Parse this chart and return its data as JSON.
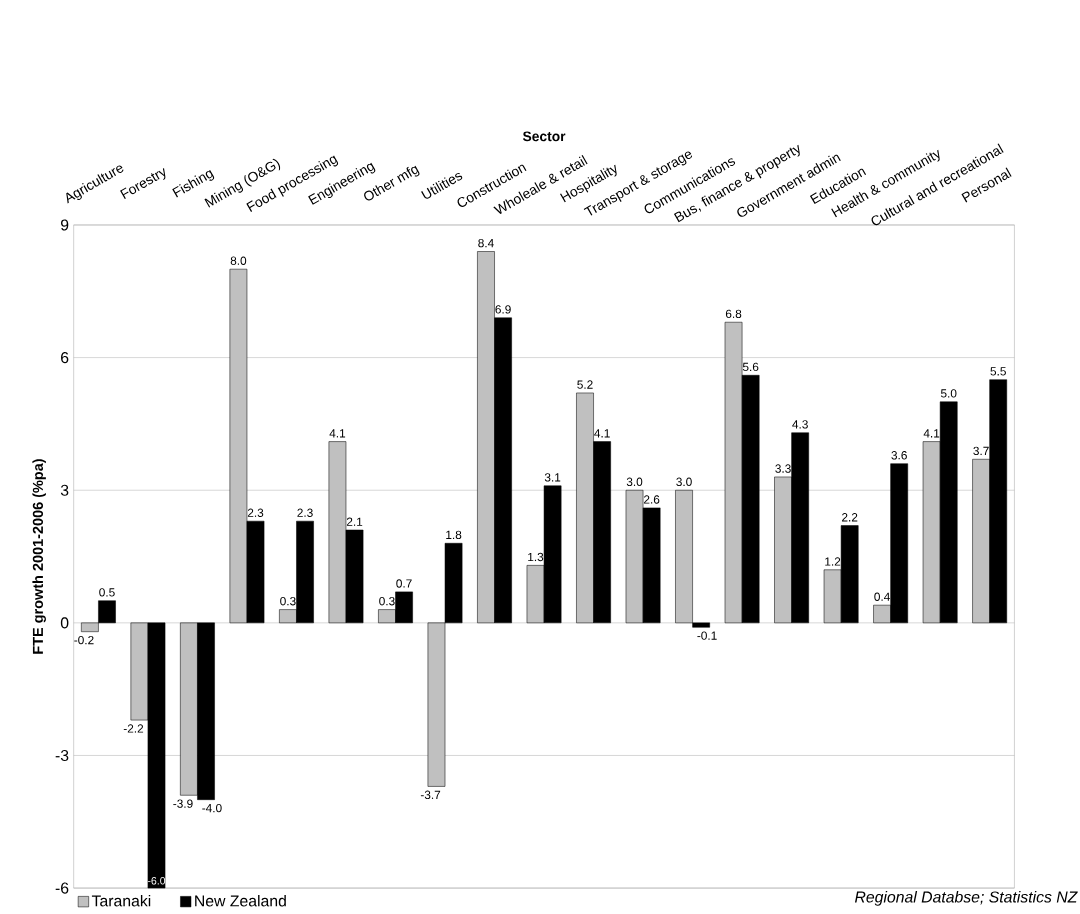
{
  "chart_data": {
    "type": "bar",
    "xlabel": "Sector",
    "ylabel": "FTE growth 2001-2006 (%pa)",
    "categories": [
      "Agriculture",
      "Forestry",
      "Fishing",
      "Mining (O&G)",
      "Food processing",
      "Engineering",
      "Other mfg",
      "Utilities",
      "Construction",
      "Wholeale & retail",
      "Hospitality",
      "Transport & storage",
      "Communications",
      "Bus, finance & property",
      "Government admin",
      "Education",
      "Health & community",
      "Cultural and recreational",
      "Personal"
    ],
    "series": [
      {
        "name": "Taranaki",
        "color": "#c0c0c0",
        "values": [
          -0.2,
          -2.2,
          -3.9,
          8.0,
          0.3,
          4.1,
          0.3,
          -3.7,
          8.4,
          1.3,
          5.2,
          3.0,
          3.0,
          6.8,
          3.3,
          1.2,
          0.4,
          4.1,
          3.7
        ],
        "value_labels": [
          "-0.2",
          "-2.2",
          "-3.9",
          "8.0",
          "0.3",
          "4.1",
          "0.3",
          "-3.7",
          "8.4",
          "1.3",
          "5.2",
          "3.0",
          "3.0",
          "6.8",
          "3.3",
          "1.2",
          "0.4",
          "4.1",
          "3.7"
        ]
      },
      {
        "name": "New Zealand",
        "color": "#000000",
        "values": [
          0.5,
          -6.0,
          -4.0,
          2.3,
          2.3,
          2.1,
          0.7,
          1.8,
          6.9,
          3.1,
          4.1,
          2.6,
          -0.1,
          5.6,
          4.3,
          2.2,
          3.6,
          5.0,
          5.5
        ],
        "value_labels": [
          "0.5",
          "-6.0",
          "-4.0",
          "2.3",
          "2.3",
          "2.1",
          "0.7",
          "1.8",
          "6.9",
          "3.1",
          "4.1",
          "2.6",
          "-0.1",
          "5.6",
          "4.3",
          "2.2",
          "3.6",
          "5.0",
          "5.5"
        ]
      }
    ],
    "ylim": [
      -6,
      9
    ],
    "yticks": [
      -6,
      -3,
      0,
      3,
      6,
      9
    ],
    "grid": "y",
    "legend": "bottom left",
    "annotations": [
      "Regional Databse; Statistics NZ"
    ]
  }
}
